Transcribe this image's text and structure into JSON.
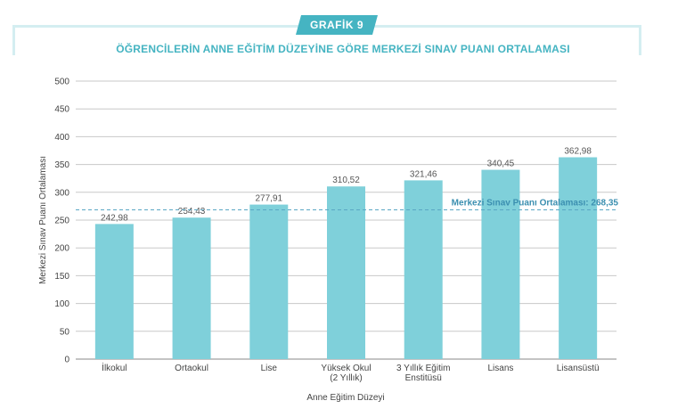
{
  "header": {
    "badge": "GRAFİK 9",
    "title": "ÖĞRENCİLERİN ANNE EĞİTİM DÜZEYİNE GÖRE MERKEZİ SINAV PUANI ORTALAMASI"
  },
  "colors": {
    "bar": "#7fd0da",
    "accent": "#45b4c2",
    "avg_line": "#5aa7c4"
  },
  "chart_data": {
    "type": "bar",
    "title": "ÖĞRENCİLERİN ANNE EĞİTİM DÜZEYİNE GÖRE MERKEZİ SINAV PUANI ORTALAMASI",
    "xlabel": "Anne Eğitim Düzeyi",
    "ylabel": "Merkezi Sınav Puanı Ortalaması",
    "ylim": [
      0,
      500
    ],
    "yticks": [
      0,
      50,
      100,
      150,
      200,
      250,
      300,
      350,
      400,
      450,
      500
    ],
    "grid": true,
    "categories": [
      [
        "İlkokul"
      ],
      [
        "Ortaokul"
      ],
      [
        "Lise"
      ],
      [
        "Yüksek Okul",
        "(2 Yıllık)"
      ],
      [
        "3 Yıllık Eğitim",
        "Enstitüsü"
      ],
      [
        "Lisans"
      ],
      [
        "Lisansüstü"
      ]
    ],
    "values": [
      242.98,
      254.43,
      277.91,
      310.52,
      321.46,
      340.45,
      362.98
    ],
    "value_labels": [
      "242,98",
      "254,43",
      "277,91",
      "310,52",
      "321,46",
      "340,45",
      "362,98"
    ],
    "reference_line": {
      "value": 268.35,
      "label": "Merkezi Sınav Puanı Ortalaması: 268,35"
    }
  }
}
